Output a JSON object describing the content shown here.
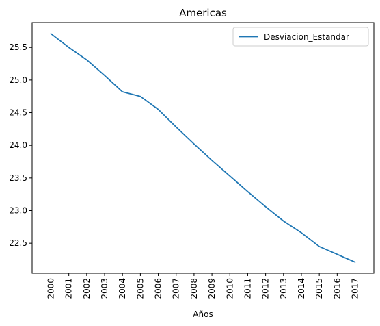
{
  "chart_data": {
    "type": "line",
    "title": "Americas",
    "xlabel": "Años",
    "ylabel": "",
    "categories": [
      "2000",
      "2001",
      "2002",
      "2003",
      "2004",
      "2005",
      "2006",
      "2007",
      "2008",
      "2009",
      "2010",
      "2011",
      "2012",
      "2013",
      "2014",
      "2015",
      "2016",
      "2017"
    ],
    "series": [
      {
        "name": "Desviacion_Estandar",
        "color": "#1f77b4",
        "values": [
          25.71,
          25.5,
          25.31,
          25.07,
          24.82,
          24.75,
          24.55,
          24.28,
          24.02,
          23.77,
          23.53,
          23.29,
          23.06,
          22.84,
          22.66,
          22.45,
          22.33,
          22.21
        ]
      }
    ],
    "ylim": [
      22.04,
      25.88
    ],
    "yticks": [
      "22.5",
      "23.0",
      "23.5",
      "24.0",
      "24.5",
      "25.0",
      "25.5"
    ],
    "legend": "top-right",
    "grid": false
  }
}
